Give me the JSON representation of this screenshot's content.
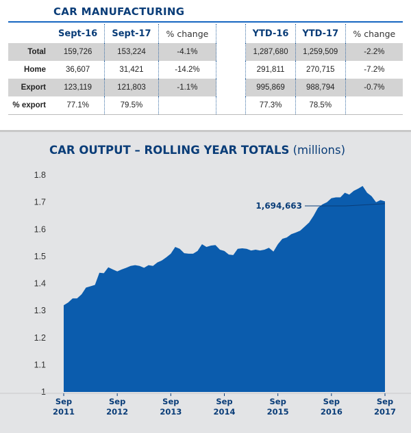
{
  "table": {
    "title": "CAR MANUFACTURING",
    "headers": [
      "Sept-16",
      "Sept-17",
      "% change",
      "YTD-16",
      "YTD-17",
      "% change"
    ],
    "rows": [
      {
        "label": "Total",
        "values": [
          "159,726",
          "153,224",
          "-4.1%",
          "1,287,680",
          "1,259,509",
          "-2.2%"
        ]
      },
      {
        "label": "Home",
        "values": [
          "36,607",
          "31,421",
          "-14.2%",
          "291,811",
          "270,715",
          "-7.2%"
        ]
      },
      {
        "label": "Export",
        "values": [
          "123,119",
          "121,803",
          "-1.1%",
          "995,869",
          "988,794",
          "-0.7%"
        ]
      },
      {
        "label": "% export",
        "values": [
          "77.1%",
          "79.5%",
          "",
          "77.3%",
          "78.5%",
          ""
        ]
      }
    ]
  },
  "chart_data": {
    "type": "area",
    "title": "CAR OUTPUT – ROLLING YEAR TOTALS",
    "subtitle": "(millions)",
    "xlabel": "",
    "ylabel": "",
    "ylim": [
      1,
      1.8
    ],
    "yticks": [
      "1",
      "1.1",
      "1.2",
      "1.3",
      "1.4",
      "1.5",
      "1.6",
      "1.7",
      "1.8"
    ],
    "xticks": [
      {
        "month": "Sep",
        "year": "2011"
      },
      {
        "month": "Sep",
        "year": "2012"
      },
      {
        "month": "Sep",
        "year": "2013"
      },
      {
        "month": "Sep",
        "year": "2014"
      },
      {
        "month": "Sep",
        "year": "2015"
      },
      {
        "month": "Sep",
        "year": "2016"
      },
      {
        "month": "Sep",
        "year": "2017"
      }
    ],
    "x_start": "Sep 2011",
    "x_end": "Sep 2017",
    "series": [
      {
        "values": [
          1.32,
          1.33,
          1.345,
          1.345,
          1.36,
          1.385,
          1.39,
          1.395,
          1.44,
          1.438,
          1.46,
          1.452,
          1.445,
          1.452,
          1.458,
          1.465,
          1.468,
          1.465,
          1.458,
          1.468,
          1.465,
          1.478,
          1.485,
          1.497,
          1.51,
          1.535,
          1.528,
          1.512,
          1.51,
          1.51,
          1.52,
          1.545,
          1.535,
          1.54,
          1.542,
          1.525,
          1.52,
          1.507,
          1.505,
          1.528,
          1.53,
          1.528,
          1.522,
          1.525,
          1.522,
          1.525,
          1.532,
          1.518,
          1.545,
          1.565,
          1.57,
          1.582,
          1.588,
          1.595,
          1.61,
          1.625,
          1.65,
          1.68,
          1.692,
          1.7,
          1.715,
          1.718,
          1.718,
          1.735,
          1.728,
          1.742,
          1.75,
          1.76,
          1.735,
          1.722,
          1.7,
          1.708,
          1.703
        ]
      }
    ],
    "annotation": {
      "label": "1,694,663",
      "value": 1.694663
    },
    "fill_color": "#0b5cad",
    "background_color": "#e3e4e6",
    "grid": false
  }
}
